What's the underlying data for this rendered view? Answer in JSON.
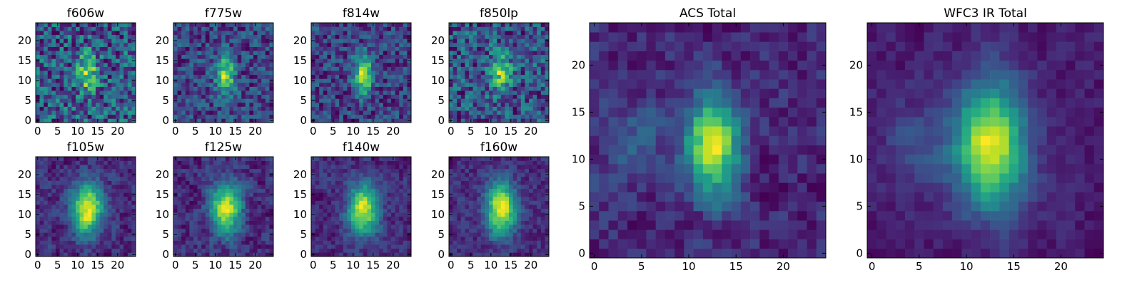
{
  "chart_data": [
    {
      "type": "heatmap",
      "title": "f606w",
      "xlim": [
        0,
        24
      ],
      "ylim": [
        0,
        24
      ],
      "xticks": [
        0,
        5,
        10,
        15,
        20
      ],
      "yticks": [
        0,
        5,
        10,
        15,
        20
      ],
      "colormap": "viridis",
      "features": {
        "blob": {
          "x": 12.5,
          "y": 12,
          "sx": 1.6,
          "sy": 3.2,
          "amp": 0.55
        },
        "noise": 0.55,
        "base": 0.42
      }
    },
    {
      "type": "heatmap",
      "title": "f775w",
      "xlim": [
        0,
        24
      ],
      "ylim": [
        0,
        24
      ],
      "xticks": [
        0,
        5,
        10,
        15,
        20
      ],
      "yticks": [
        0,
        5,
        10,
        15,
        20
      ],
      "colormap": "viridis",
      "features": {
        "blob": {
          "x": 12.5,
          "y": 11.5,
          "sx": 1.7,
          "sy": 3.4,
          "amp": 0.7
        },
        "noise": 0.45,
        "base": 0.35
      }
    },
    {
      "type": "heatmap",
      "title": "f814w",
      "xlim": [
        0,
        24
      ],
      "ylim": [
        0,
        24
      ],
      "xticks": [
        0,
        5,
        10,
        15,
        20
      ],
      "yticks": [
        0,
        5,
        10,
        15,
        20
      ],
      "colormap": "viridis",
      "features": {
        "blob": {
          "x": 12.5,
          "y": 11.5,
          "sx": 1.7,
          "sy": 3.4,
          "amp": 0.7
        },
        "noise": 0.4,
        "base": 0.35
      }
    },
    {
      "type": "heatmap",
      "title": "f850lp",
      "xlim": [
        0,
        24
      ],
      "ylim": [
        0,
        24
      ],
      "xticks": [
        0,
        5,
        10,
        15,
        20
      ],
      "yticks": [
        0,
        5,
        10,
        15,
        20
      ],
      "colormap": "viridis",
      "features": {
        "blob": {
          "x": 12.5,
          "y": 12,
          "sx": 1.7,
          "sy": 3.4,
          "amp": 0.6
        },
        "noise": 0.55,
        "base": 0.4
      }
    },
    {
      "type": "heatmap",
      "title": "f105w",
      "xlim": [
        0,
        24
      ],
      "ylim": [
        0,
        24
      ],
      "xticks": [
        0,
        5,
        10,
        15,
        20
      ],
      "yticks": [
        0,
        5,
        10,
        15,
        20
      ],
      "colormap": "viridis",
      "features": {
        "blob": {
          "x": 12.5,
          "y": 11.5,
          "sx": 2.6,
          "sy": 4.5,
          "amp": 0.75
        },
        "noise": 0.3,
        "base": 0.3
      }
    },
    {
      "type": "heatmap",
      "title": "f125w",
      "xlim": [
        0,
        24
      ],
      "ylim": [
        0,
        24
      ],
      "xticks": [
        0,
        5,
        10,
        15,
        20
      ],
      "yticks": [
        0,
        5,
        10,
        15,
        20
      ],
      "colormap": "viridis",
      "features": {
        "blob": {
          "x": 12.5,
          "y": 11.5,
          "sx": 2.6,
          "sy": 4.5,
          "amp": 0.75
        },
        "noise": 0.35,
        "base": 0.35
      }
    },
    {
      "type": "heatmap",
      "title": "f140w",
      "xlim": [
        0,
        24
      ],
      "ylim": [
        0,
        24
      ],
      "xticks": [
        0,
        5,
        10,
        15,
        20
      ],
      "yticks": [
        0,
        5,
        10,
        15,
        20
      ],
      "colormap": "viridis",
      "features": {
        "blob": {
          "x": 12.5,
          "y": 11.5,
          "sx": 2.6,
          "sy": 4.5,
          "amp": 0.75
        },
        "noise": 0.3,
        "base": 0.3
      }
    },
    {
      "type": "heatmap",
      "title": "f160w",
      "xlim": [
        0,
        24
      ],
      "ylim": [
        0,
        24
      ],
      "xticks": [
        0,
        5,
        10,
        15,
        20
      ],
      "yticks": [
        0,
        5,
        10,
        15,
        20
      ],
      "colormap": "viridis",
      "features": {
        "blob": {
          "x": 12.5,
          "y": 11.5,
          "sx": 2.6,
          "sy": 4.5,
          "amp": 0.8
        },
        "noise": 0.3,
        "base": 0.3
      }
    },
    {
      "type": "heatmap",
      "title": "ACS Total",
      "xlim": [
        0,
        24
      ],
      "ylim": [
        0,
        24
      ],
      "xticks": [
        0,
        5,
        10,
        15,
        20
      ],
      "yticks": [
        0,
        5,
        10,
        15,
        20
      ],
      "colormap": "viridis",
      "features": {
        "blob": {
          "x": 12.5,
          "y": 11.5,
          "sx": 1.8,
          "sy": 3.6,
          "amp": 0.65
        },
        "secondary": {
          "x": 4,
          "y": 12,
          "sx": 2.5,
          "sy": 3,
          "amp": 0.12
        },
        "noise": 0.25,
        "base": 0.4
      }
    },
    {
      "type": "heatmap",
      "title": "WFC3 IR Total",
      "xlim": [
        0,
        24
      ],
      "ylim": [
        0,
        24
      ],
      "xticks": [
        0,
        5,
        10,
        15,
        20
      ],
      "yticks": [
        0,
        5,
        10,
        15,
        20
      ],
      "colormap": "viridis",
      "features": {
        "blob": {
          "x": 12.5,
          "y": 11.5,
          "sx": 2.6,
          "sy": 4.6,
          "amp": 0.7
        },
        "secondary": {
          "x": 4.5,
          "y": 11.5,
          "sx": 2.5,
          "sy": 3.5,
          "amp": 0.12
        },
        "noise": 0.15,
        "base": 0.33
      }
    }
  ]
}
